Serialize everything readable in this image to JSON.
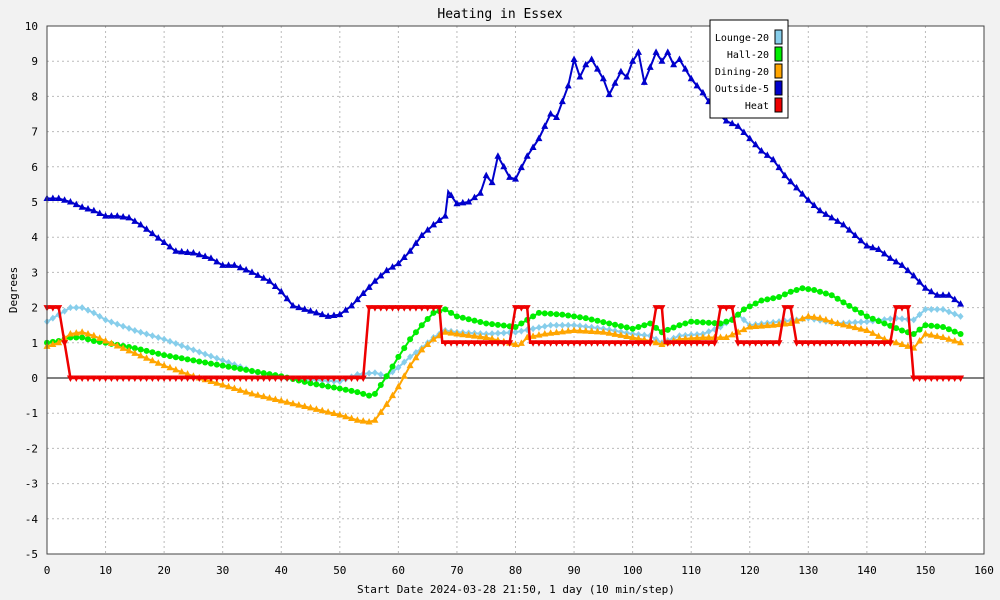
{
  "chart_data": {
    "type": "line",
    "title": "Heating in Essex",
    "xlabel": "Start Date 2024-03-28 21:50, 1 day (10 min/step)",
    "ylabel": "Degrees",
    "xlim": [
      0,
      160
    ],
    "ylim": [
      -5,
      10
    ],
    "xticks": [
      0,
      10,
      20,
      30,
      40,
      50,
      60,
      70,
      80,
      90,
      100,
      110,
      120,
      130,
      140,
      150,
      160
    ],
    "yticks": [
      -5,
      -4,
      -3,
      -2,
      -1,
      0,
      1,
      2,
      3,
      4,
      5,
      6,
      7,
      8,
      9,
      10
    ],
    "grid": true,
    "legend_position": "top-right",
    "series": [
      {
        "name": "Lounge-20",
        "color": "#87ceeb",
        "marker": "diamond",
        "points": [
          [
            0,
            1.6
          ],
          [
            2,
            1.8
          ],
          [
            4,
            2.0
          ],
          [
            6,
            2.0
          ],
          [
            8,
            1.85
          ],
          [
            10,
            1.65
          ],
          [
            15,
            1.35
          ],
          [
            20,
            1.1
          ],
          [
            25,
            0.8
          ],
          [
            30,
            0.5
          ],
          [
            35,
            0.2
          ],
          [
            40,
            0.0
          ],
          [
            45,
            -0.05
          ],
          [
            50,
            -0.1
          ],
          [
            53,
            0.1
          ],
          [
            56,
            0.15
          ],
          [
            58,
            0.05
          ],
          [
            60,
            0.3
          ],
          [
            62,
            0.6
          ],
          [
            64,
            0.85
          ],
          [
            66,
            1.15
          ],
          [
            68,
            1.35
          ],
          [
            70,
            1.3
          ],
          [
            75,
            1.25
          ],
          [
            80,
            1.3
          ],
          [
            83,
            1.4
          ],
          [
            86,
            1.5
          ],
          [
            90,
            1.5
          ],
          [
            95,
            1.4
          ],
          [
            100,
            1.25
          ],
          [
            103,
            1.2
          ],
          [
            105,
            1.0
          ],
          [
            108,
            1.2
          ],
          [
            112,
            1.25
          ],
          [
            115,
            1.45
          ],
          [
            118,
            1.8
          ],
          [
            120,
            1.5
          ],
          [
            125,
            1.6
          ],
          [
            128,
            1.65
          ],
          [
            130,
            1.7
          ],
          [
            135,
            1.55
          ],
          [
            140,
            1.6
          ],
          [
            145,
            1.7
          ],
          [
            148,
            1.65
          ],
          [
            150,
            1.95
          ],
          [
            153,
            1.95
          ],
          [
            156,
            1.75
          ]
        ]
      },
      {
        "name": "Hall-20",
        "color": "#00ee00",
        "marker": "circle",
        "points": [
          [
            0,
            1.0
          ],
          [
            2,
            1.05
          ],
          [
            4,
            1.15
          ],
          [
            6,
            1.15
          ],
          [
            8,
            1.05
          ],
          [
            10,
            1.0
          ],
          [
            15,
            0.85
          ],
          [
            20,
            0.65
          ],
          [
            25,
            0.5
          ],
          [
            30,
            0.35
          ],
          [
            35,
            0.2
          ],
          [
            40,
            0.05
          ],
          [
            45,
            -0.15
          ],
          [
            50,
            -0.3
          ],
          [
            53,
            -0.4
          ],
          [
            55,
            -0.5
          ],
          [
            56,
            -0.45
          ],
          [
            58,
            0.05
          ],
          [
            60,
            0.6
          ],
          [
            62,
            1.1
          ],
          [
            64,
            1.5
          ],
          [
            66,
            1.85
          ],
          [
            68,
            1.95
          ],
          [
            70,
            1.75
          ],
          [
            75,
            1.55
          ],
          [
            80,
            1.45
          ],
          [
            82,
            1.65
          ],
          [
            84,
            1.85
          ],
          [
            88,
            1.8
          ],
          [
            92,
            1.7
          ],
          [
            96,
            1.55
          ],
          [
            100,
            1.4
          ],
          [
            103,
            1.55
          ],
          [
            105,
            1.3
          ],
          [
            108,
            1.5
          ],
          [
            110,
            1.6
          ],
          [
            115,
            1.55
          ],
          [
            117,
            1.65
          ],
          [
            119,
            1.95
          ],
          [
            122,
            2.2
          ],
          [
            125,
            2.3
          ],
          [
            127,
            2.45
          ],
          [
            129,
            2.55
          ],
          [
            131,
            2.5
          ],
          [
            134,
            2.35
          ],
          [
            137,
            2.05
          ],
          [
            140,
            1.75
          ],
          [
            143,
            1.55
          ],
          [
            146,
            1.35
          ],
          [
            148,
            1.25
          ],
          [
            150,
            1.5
          ],
          [
            153,
            1.45
          ],
          [
            156,
            1.25
          ]
        ]
      },
      {
        "name": "Dining-20",
        "color": "#ffa500",
        "marker": "triangle",
        "points": [
          [
            0,
            0.9
          ],
          [
            2,
            1.0
          ],
          [
            4,
            1.25
          ],
          [
            6,
            1.3
          ],
          [
            8,
            1.2
          ],
          [
            10,
            1.05
          ],
          [
            15,
            0.7
          ],
          [
            20,
            0.35
          ],
          [
            25,
            0.05
          ],
          [
            30,
            -0.2
          ],
          [
            35,
            -0.45
          ],
          [
            40,
            -0.65
          ],
          [
            45,
            -0.85
          ],
          [
            50,
            -1.05
          ],
          [
            53,
            -1.2
          ],
          [
            55,
            -1.25
          ],
          [
            56,
            -1.2
          ],
          [
            58,
            -0.75
          ],
          [
            60,
            -0.25
          ],
          [
            62,
            0.35
          ],
          [
            64,
            0.8
          ],
          [
            66,
            1.1
          ],
          [
            68,
            1.3
          ],
          [
            70,
            1.25
          ],
          [
            75,
            1.15
          ],
          [
            80,
            0.95
          ],
          [
            80.5,
            0.9
          ],
          [
            82,
            1.15
          ],
          [
            85,
            1.25
          ],
          [
            90,
            1.35
          ],
          [
            95,
            1.3
          ],
          [
            100,
            1.15
          ],
          [
            103,
            1.05
          ],
          [
            105,
            0.95
          ],
          [
            108,
            1.1
          ],
          [
            112,
            1.15
          ],
          [
            116,
            1.15
          ],
          [
            118,
            1.3
          ],
          [
            120,
            1.45
          ],
          [
            124,
            1.5
          ],
          [
            127,
            1.55
          ],
          [
            130,
            1.75
          ],
          [
            132,
            1.7
          ],
          [
            135,
            1.55
          ],
          [
            140,
            1.35
          ],
          [
            143,
            1.1
          ],
          [
            146,
            0.95
          ],
          [
            148,
            0.85
          ],
          [
            150,
            1.25
          ],
          [
            153,
            1.15
          ],
          [
            156,
            1.0
          ]
        ]
      },
      {
        "name": "Outside-5",
        "color": "#0000cc",
        "marker": "triangle",
        "points": [
          [
            0,
            5.1
          ],
          [
            2,
            5.1
          ],
          [
            4,
            5.0
          ],
          [
            6,
            4.85
          ],
          [
            8,
            4.75
          ],
          [
            10,
            4.6
          ],
          [
            12,
            4.6
          ],
          [
            14,
            4.55
          ],
          [
            16,
            4.35
          ],
          [
            18,
            4.1
          ],
          [
            20,
            3.85
          ],
          [
            22,
            3.6
          ],
          [
            25,
            3.55
          ],
          [
            28,
            3.4
          ],
          [
            30,
            3.2
          ],
          [
            32,
            3.2
          ],
          [
            35,
            3.0
          ],
          [
            38,
            2.75
          ],
          [
            40,
            2.45
          ],
          [
            42,
            2.05
          ],
          [
            44,
            1.95
          ],
          [
            46,
            1.85
          ],
          [
            48,
            1.75
          ],
          [
            50,
            1.8
          ],
          [
            52,
            2.05
          ],
          [
            54,
            2.4
          ],
          [
            56,
            2.75
          ],
          [
            58,
            3.05
          ],
          [
            60,
            3.25
          ],
          [
            62,
            3.6
          ],
          [
            64,
            4.05
          ],
          [
            66,
            4.35
          ],
          [
            68,
            4.6
          ],
          [
            68.5,
            5.3
          ],
          [
            70,
            4.95
          ],
          [
            72,
            5.0
          ],
          [
            74,
            5.25
          ],
          [
            75,
            5.75
          ],
          [
            76,
            5.55
          ],
          [
            77,
            6.3
          ],
          [
            79,
            5.7
          ],
          [
            80,
            5.65
          ],
          [
            82,
            6.3
          ],
          [
            84,
            6.8
          ],
          [
            86,
            7.5
          ],
          [
            87,
            7.4
          ],
          [
            89,
            8.3
          ],
          [
            90,
            9.05
          ],
          [
            91,
            8.55
          ],
          [
            92,
            8.9
          ],
          [
            93,
            9.05
          ],
          [
            95,
            8.5
          ],
          [
            96,
            8.05
          ],
          [
            98,
            8.7
          ],
          [
            99,
            8.55
          ],
          [
            100,
            9.0
          ],
          [
            101,
            9.25
          ],
          [
            102,
            8.4
          ],
          [
            104,
            9.25
          ],
          [
            105,
            9.0
          ],
          [
            106,
            9.25
          ],
          [
            107,
            8.9
          ],
          [
            108,
            9.05
          ],
          [
            110,
            8.5
          ],
          [
            112,
            8.1
          ],
          [
            114,
            7.6
          ],
          [
            116,
            7.3
          ],
          [
            118,
            7.15
          ],
          [
            120,
            6.8
          ],
          [
            122,
            6.45
          ],
          [
            124,
            6.2
          ],
          [
            126,
            5.75
          ],
          [
            128,
            5.4
          ],
          [
            130,
            5.05
          ],
          [
            132,
            4.75
          ],
          [
            134,
            4.55
          ],
          [
            136,
            4.35
          ],
          [
            138,
            4.05
          ],
          [
            140,
            3.75
          ],
          [
            142,
            3.65
          ],
          [
            144,
            3.4
          ],
          [
            146,
            3.2
          ],
          [
            148,
            2.9
          ],
          [
            150,
            2.55
          ],
          [
            152,
            2.35
          ],
          [
            154,
            2.35
          ],
          [
            156,
            2.1
          ]
        ]
      },
      {
        "name": "Heat",
        "color": "#ee0000",
        "marker": "triangle-down",
        "points": [
          [
            0,
            2
          ],
          [
            2,
            2
          ],
          [
            4,
            0
          ],
          [
            54,
            0
          ],
          [
            55,
            2
          ],
          [
            67,
            2
          ],
          [
            67.5,
            1
          ],
          [
            79,
            1
          ],
          [
            80,
            2
          ],
          [
            82,
            2
          ],
          [
            82.5,
            1
          ],
          [
            103,
            1
          ],
          [
            104,
            2
          ],
          [
            105,
            2
          ],
          [
            105.5,
            1
          ],
          [
            114,
            1
          ],
          [
            115,
            2
          ],
          [
            117,
            2
          ],
          [
            118,
            1
          ],
          [
            125,
            1
          ],
          [
            126,
            2
          ],
          [
            127,
            2
          ],
          [
            128,
            1
          ],
          [
            144,
            1
          ],
          [
            145,
            2
          ],
          [
            147,
            2
          ],
          [
            148,
            0
          ],
          [
            156,
            0
          ]
        ]
      }
    ]
  }
}
